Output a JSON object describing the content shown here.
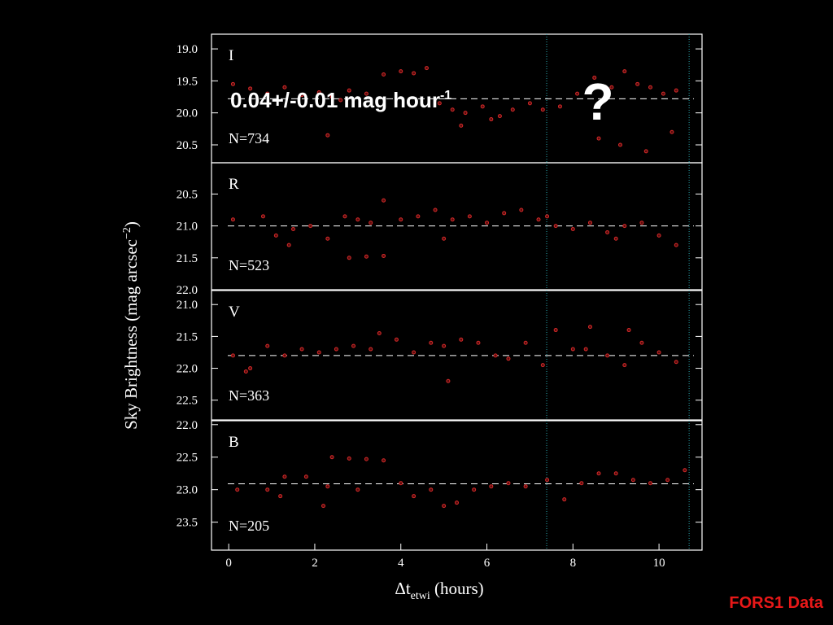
{
  "slide": {
    "annotation": {
      "main": "0.04+/-0.01 mag hour",
      "sup": "-1"
    },
    "question": "?",
    "footer": "FORS1 Data",
    "y_label": {
      "main": "Sky Brightness (mag arcsec",
      "sup": "−2",
      "end": ")"
    }
  },
  "chart_data": [
    {
      "type": "scatter",
      "label": "I",
      "annotation": "N=734",
      "color": "#d42a2a",
      "xlim": [
        -0.4,
        11.0
      ],
      "ylim": [
        20.78,
        18.77
      ],
      "yticks": [
        {
          "value": 19,
          "label": "19.0"
        },
        19.5,
        {
          "value": 20,
          "label": "20.0"
        },
        20.5
      ],
      "fit_line": 19.78,
      "vlines": [
        7.39,
        10.7
      ],
      "x": [
        0.1,
        0.5,
        0.9,
        1.3,
        1.7,
        2.1,
        2.4,
        2.6,
        2.8,
        3.2,
        3.6,
        4.0,
        4.3,
        4.6,
        4.9,
        5.2,
        5.5,
        5.9,
        6.3,
        6.6,
        7.0,
        7.3,
        7.7,
        8.1,
        8.5,
        8.9,
        9.2,
        9.5,
        9.8,
        10.1,
        10.4,
        2.3,
        8.6,
        9.1,
        9.7,
        10.3,
        5.4,
        6.1
      ],
      "y": [
        19.55,
        19.62,
        19.7,
        19.6,
        19.72,
        19.68,
        19.75,
        19.8,
        19.65,
        19.7,
        19.4,
        19.35,
        19.38,
        19.3,
        19.85,
        19.95,
        20.0,
        19.9,
        20.05,
        19.95,
        19.85,
        19.95,
        19.9,
        19.7,
        19.45,
        19.6,
        19.35,
        19.55,
        19.6,
        19.7,
        19.65,
        20.35,
        20.4,
        20.5,
        20.6,
        20.3,
        20.2,
        20.1
      ]
    },
    {
      "type": "scatter",
      "label": "R",
      "annotation": "N=523",
      "color": "#d42a2a",
      "xlim": [
        -0.4,
        11.0
      ],
      "ylim": [
        22.0,
        20.01
      ],
      "yticks": [
        20.5,
        {
          "value": 21,
          "label": "21.0"
        },
        21.5,
        {
          "value": 22,
          "label": "22.0"
        }
      ],
      "fit_line": 21.0,
      "vlines": [
        7.39,
        10.7
      ],
      "x": [
        0.1,
        0.8,
        1.1,
        1.5,
        1.9,
        2.3,
        2.7,
        3.0,
        3.3,
        3.6,
        4.0,
        4.4,
        4.8,
        5.2,
        5.6,
        6.0,
        6.4,
        6.8,
        7.2,
        7.6,
        8.0,
        8.4,
        8.8,
        9.2,
        9.6,
        10.0,
        10.4,
        2.8,
        3.2,
        3.6,
        1.4,
        5.0,
        7.4,
        9.0
      ],
      "y": [
        20.9,
        20.85,
        21.15,
        21.05,
        21.0,
        21.2,
        20.85,
        20.9,
        20.95,
        20.6,
        20.9,
        20.85,
        20.75,
        20.9,
        20.85,
        20.95,
        20.8,
        20.75,
        20.9,
        21.0,
        21.05,
        20.95,
        21.1,
        21.0,
        20.95,
        21.15,
        21.3,
        21.5,
        21.48,
        21.47,
        21.3,
        21.2,
        20.85,
        21.2
      ]
    },
    {
      "type": "scatter",
      "label": "V",
      "annotation": "N=363",
      "color": "#d42a2a",
      "xlim": [
        -0.4,
        11.0
      ],
      "ylim": [
        22.81,
        20.78
      ],
      "yticks": [
        {
          "value": 21,
          "label": "21.0"
        },
        21.5,
        {
          "value": 22,
          "label": "22.0"
        },
        22.5
      ],
      "fit_line": 21.8,
      "vlines": [
        7.39,
        10.7
      ],
      "x": [
        0.1,
        0.5,
        0.9,
        1.3,
        1.7,
        2.1,
        2.5,
        2.9,
        3.3,
        3.5,
        3.9,
        4.3,
        4.7,
        5.0,
        5.4,
        5.8,
        6.2,
        6.5,
        6.9,
        7.3,
        7.6,
        8.0,
        8.4,
        8.8,
        9.2,
        9.6,
        10.0,
        10.4,
        0.4,
        5.1,
        8.3,
        9.3
      ],
      "y": [
        21.8,
        22.0,
        21.65,
        21.8,
        21.7,
        21.75,
        21.7,
        21.65,
        21.7,
        21.45,
        21.55,
        21.75,
        21.6,
        21.65,
        21.55,
        21.6,
        21.8,
        21.85,
        21.6,
        21.95,
        21.4,
        21.7,
        21.35,
        21.8,
        21.95,
        21.6,
        21.75,
        21.9,
        22.05,
        22.2,
        21.7,
        21.4
      ]
    },
    {
      "type": "scatter",
      "label": "B",
      "annotation": "N=205",
      "color": "#d42a2a",
      "xlim": [
        -0.4,
        11.0
      ],
      "ylim": [
        23.93,
        21.94
      ],
      "yticks": [
        {
          "value": 22,
          "label": "22.0"
        },
        22.5,
        {
          "value": 23,
          "label": "23.0"
        },
        23.5
      ],
      "xticks": [
        0,
        2,
        4,
        6,
        8,
        10
      ],
      "x_label": {
        "main": "Δt",
        "sub": "etwi",
        "rest": " (hours)"
      },
      "fit_line": 22.91,
      "vlines": [
        7.39,
        10.7
      ],
      "x": [
        0.2,
        0.9,
        1.3,
        1.8,
        2.2,
        2.4,
        2.8,
        3.2,
        3.6,
        4.0,
        4.3,
        4.7,
        5.0,
        5.3,
        5.7,
        6.1,
        6.5,
        6.9,
        7.4,
        7.8,
        8.2,
        8.6,
        9.0,
        9.4,
        9.8,
        10.2,
        10.6,
        2.3,
        3.0,
        1.2
      ],
      "y": [
        23.0,
        23.0,
        22.8,
        22.8,
        23.25,
        22.5,
        22.52,
        22.53,
        22.55,
        22.9,
        23.1,
        23.0,
        23.25,
        23.2,
        23.0,
        22.95,
        22.9,
        22.95,
        22.85,
        23.15,
        22.9,
        22.75,
        22.75,
        22.85,
        22.9,
        22.85,
        22.7,
        22.95,
        23.0,
        23.1
      ]
    }
  ]
}
